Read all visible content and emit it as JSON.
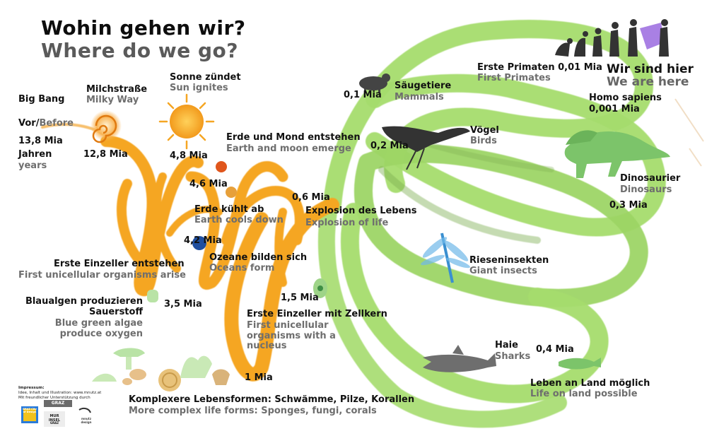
{
  "title": {
    "de": "Wohin gehen wir?",
    "en": "Where do we go?"
  },
  "events": [
    {
      "id": "big-bang",
      "de": "Big Bang",
      "en": ""
    },
    {
      "id": "milky-way",
      "de": "Milchstraße",
      "en": "Milky Way",
      "time": "12,8 Mia"
    },
    {
      "id": "sun",
      "de": "Sonne zündet",
      "en": "Sun ignites"
    },
    {
      "id": "earth-moon",
      "de": "Erde und Mond entstehen",
      "en": "Earth and moon emerge",
      "time": "4,8 Mia"
    },
    {
      "id": "earth-cools",
      "de": "Erde kühlt ab",
      "en": "Earth cools down",
      "time": "4,6 Mia"
    },
    {
      "id": "oceans",
      "de": "Ozeane bilden sich",
      "en": "Oceans form",
      "time": "4,2 Mia"
    },
    {
      "id": "first-unicellular",
      "de": "Erste Einzeller entstehen",
      "en": "First unicellular organisms arise"
    },
    {
      "id": "algae",
      "de": "Blaualgen produzieren Sauerstoff",
      "en": "Blue green algae produce oxygen",
      "time": "3,5 Mia"
    },
    {
      "id": "nucleus",
      "de": "Erste Einzeller mit Zellkern",
      "en": "First unicellular organisms with a nucleus",
      "time": "1,5 Mia"
    },
    {
      "id": "complex",
      "de": "Komplexere Lebensformen: Schwämme, Pilze, Korallen",
      "en": "More complex life forms: Sponges, fungi, corals",
      "time": "1 Mia"
    },
    {
      "id": "explosion",
      "de": "Explosion des Lebens",
      "en": "Explosion of life",
      "time": "0,6 Mia"
    },
    {
      "id": "sharks",
      "de": "Haie",
      "en": "Sharks",
      "time": "0,4 Mia"
    },
    {
      "id": "land",
      "de": "Leben an Land möglich",
      "en": "Life on land possible"
    },
    {
      "id": "insects",
      "de": "Rieseninsekten",
      "en": "Giant insects"
    },
    {
      "id": "dinos",
      "de": "Dinosaurier",
      "en": "Dinosaurs",
      "time": "0,3 Mia"
    },
    {
      "id": "birds",
      "de": "Vögel",
      "en": "Birds",
      "time": "0,2 Mia"
    },
    {
      "id": "mammals",
      "de": "Säugetiere",
      "en": "Mammals",
      "time": "0,1 Mia"
    },
    {
      "id": "primates",
      "de": "Erste Primaten",
      "en": "First Primates",
      "time": "0,01 Mia"
    },
    {
      "id": "sapiens",
      "de": "Homo sapiens",
      "en": "",
      "time": "0,001 Mia"
    },
    {
      "id": "here",
      "de": "Wir sind hier",
      "en": "We are here"
    }
  ],
  "before": {
    "de": "Vor/",
    "en": "Before",
    "num": "13,8 Mia",
    "de2": "Jahren",
    "en2": "years"
  },
  "imprint": {
    "title": "Impressum:",
    "line1": "Idee, Inhalt und Illustration: www.mnutz.at",
    "line2": "Mit freundlicher Unterstützung durch"
  },
  "logos": {
    "graz": "GRAZ",
    "murinsel": "MUR INSEL",
    "sub": "GRAZ",
    "mnutz": "mnutz design",
    "citydesign": "GRAZ City of Design"
  },
  "colors": {
    "orange": "#F5A623",
    "green": "#A5DC6E",
    "greenDark": "#8DBF5C",
    "sun": "#F5A623"
  }
}
